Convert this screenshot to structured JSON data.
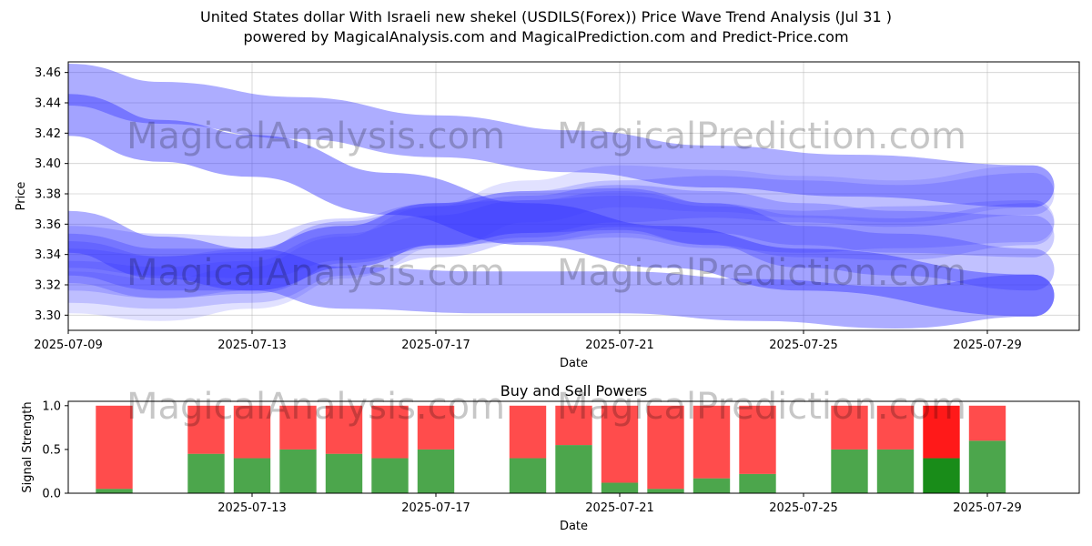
{
  "title_line1": "United States dollar With Israeli new shekel (USDILS(Forex)) Price Wave Trend Analysis (Jul 31 )",
  "title_line2": "powered by MagicalAnalysis.com and MagicalPrediction.com and Predict-Price.com",
  "watermarks": [
    "MagicalAnalysis.com",
    "MagicalPrediction.com"
  ],
  "colors": {
    "wave": "#3333ff",
    "buy": "#008000",
    "sell": "#ff0000"
  },
  "chart_data": [
    {
      "type": "line",
      "title": "",
      "xlabel": "Date",
      "ylabel": "Price",
      "xlim": [
        "2025-07-09",
        "2025-07-31"
      ],
      "ylim": [
        3.29,
        3.467
      ],
      "x_ticks": [
        "2025-07-09",
        "2025-07-13",
        "2025-07-17",
        "2025-07-21",
        "2025-07-25",
        "2025-07-29"
      ],
      "y_ticks": [
        "3.30",
        "3.32",
        "3.34",
        "3.36",
        "3.38",
        "3.40",
        "3.42",
        "3.44",
        "3.46"
      ],
      "grid": true,
      "series": [
        {
          "x": [
            "2025-07-09",
            "2025-07-11",
            "2025-07-14",
            "2025-07-17",
            "2025-07-20",
            "2025-07-23",
            "2025-07-26",
            "2025-07-30"
          ],
          "y": [
            3.452,
            3.44,
            3.43,
            3.418,
            3.408,
            3.398,
            3.392,
            3.385
          ],
          "opacity": 0.4
        },
        {
          "x": [
            "2025-07-09",
            "2025-07-11",
            "2025-07-13",
            "2025-07-16",
            "2025-07-19",
            "2025-07-22",
            "2025-07-25",
            "2025-07-30"
          ],
          "y": [
            3.432,
            3.415,
            3.405,
            3.38,
            3.36,
            3.345,
            3.33,
            3.313
          ],
          "opacity": 0.45
        },
        {
          "x": [
            "2025-07-09",
            "2025-07-11",
            "2025-07-13",
            "2025-07-15",
            "2025-07-18",
            "2025-07-21",
            "2025-07-24",
            "2025-07-27",
            "2025-07-30"
          ],
          "y": [
            3.355,
            3.338,
            3.33,
            3.318,
            3.315,
            3.315,
            3.31,
            3.305,
            3.313
          ],
          "opacity": 0.4
        },
        {
          "x": [
            "2025-07-09",
            "2025-07-11",
            "2025-07-13",
            "2025-07-15",
            "2025-07-17",
            "2025-07-19",
            "2025-07-21",
            "2025-07-23",
            "2025-07-25",
            "2025-07-27",
            "2025-07-30"
          ],
          "y": [
            3.34,
            3.33,
            3.33,
            3.345,
            3.36,
            3.368,
            3.37,
            3.36,
            3.345,
            3.34,
            3.33
          ],
          "opacity": 0.3
        },
        {
          "x": [
            "2025-07-09",
            "2025-07-11",
            "2025-07-13",
            "2025-07-15",
            "2025-07-17",
            "2025-07-19",
            "2025-07-21",
            "2025-07-23",
            "2025-07-25",
            "2025-07-27",
            "2025-07-30"
          ],
          "y": [
            3.335,
            3.325,
            3.328,
            3.348,
            3.358,
            3.365,
            3.372,
            3.368,
            3.36,
            3.355,
            3.352
          ],
          "opacity": 0.25
        },
        {
          "x": [
            "2025-07-09",
            "2025-07-11",
            "2025-07-13",
            "2025-07-15",
            "2025-07-17",
            "2025-07-19",
            "2025-07-21",
            "2025-07-23",
            "2025-07-25",
            "2025-07-27",
            "2025-07-30"
          ],
          "y": [
            3.33,
            3.325,
            3.33,
            3.345,
            3.36,
            3.368,
            3.375,
            3.378,
            3.375,
            3.372,
            3.38
          ],
          "opacity": 0.2
        },
        {
          "x": [
            "2025-07-09",
            "2025-07-11",
            "2025-07-13",
            "2025-07-15",
            "2025-07-17",
            "2025-07-19",
            "2025-07-21",
            "2025-07-23",
            "2025-07-25",
            "2025-07-27",
            "2025-07-30"
          ],
          "y": [
            3.322,
            3.318,
            3.322,
            3.34,
            3.352,
            3.362,
            3.368,
            3.36,
            3.352,
            3.35,
            3.36
          ],
          "opacity": 0.2
        },
        {
          "x": [
            "2025-07-09",
            "2025-07-11",
            "2025-07-13",
            "2025-07-15",
            "2025-07-17",
            "2025-07-19",
            "2025-07-21",
            "2025-07-23",
            "2025-07-25",
            "2025-07-27",
            "2025-07-30"
          ],
          "y": [
            3.315,
            3.31,
            3.318,
            3.338,
            3.358,
            3.375,
            3.385,
            3.382,
            3.378,
            3.375,
            3.385
          ],
          "opacity": 0.15
        },
        {
          "x": [
            "2025-07-09",
            "2025-07-11",
            "2025-07-13",
            "2025-07-15",
            "2025-07-17",
            "2025-07-19",
            "2025-07-21",
            "2025-07-23",
            "2025-07-25",
            "2025-07-27",
            "2025-07-30"
          ],
          "y": [
            3.345,
            3.34,
            3.338,
            3.35,
            3.36,
            3.362,
            3.365,
            3.358,
            3.355,
            3.358,
            3.362
          ],
          "opacity": 0.2
        }
      ]
    },
    {
      "type": "bar",
      "title": "Buy and Sell Powers",
      "xlabel": "Date",
      "ylabel": "Signal Strength",
      "ylim": [
        0,
        1.05
      ],
      "x_ticks": [
        "2025-07-13",
        "2025-07-17",
        "2025-07-21",
        "2025-07-25",
        "2025-07-29"
      ],
      "y_ticks": [
        "0.0",
        "0.5",
        "1.0"
      ],
      "categories": [
        "2025-07-10",
        "2025-07-12",
        "2025-07-13",
        "2025-07-14",
        "2025-07-15",
        "2025-07-16",
        "2025-07-17",
        "2025-07-19",
        "2025-07-20",
        "2025-07-21",
        "2025-07-22",
        "2025-07-23",
        "2025-07-24",
        "2025-07-26",
        "2025-07-27",
        "2025-07-28",
        "2025-07-29"
      ],
      "series": [
        {
          "name": "Buy",
          "values": [
            0.05,
            0.45,
            0.4,
            0.5,
            0.45,
            0.4,
            0.5,
            0.4,
            0.55,
            0.12,
            0.05,
            0.17,
            0.22,
            0.5,
            0.5,
            0.4,
            0.6
          ]
        },
        {
          "name": "Sell",
          "values": [
            0.95,
            0.55,
            0.6,
            0.5,
            0.55,
            0.6,
            0.5,
            0.6,
            0.45,
            0.88,
            0.95,
            0.83,
            0.78,
            0.5,
            0.5,
            0.6,
            0.4
          ]
        }
      ],
      "highlight_index": 15
    }
  ]
}
